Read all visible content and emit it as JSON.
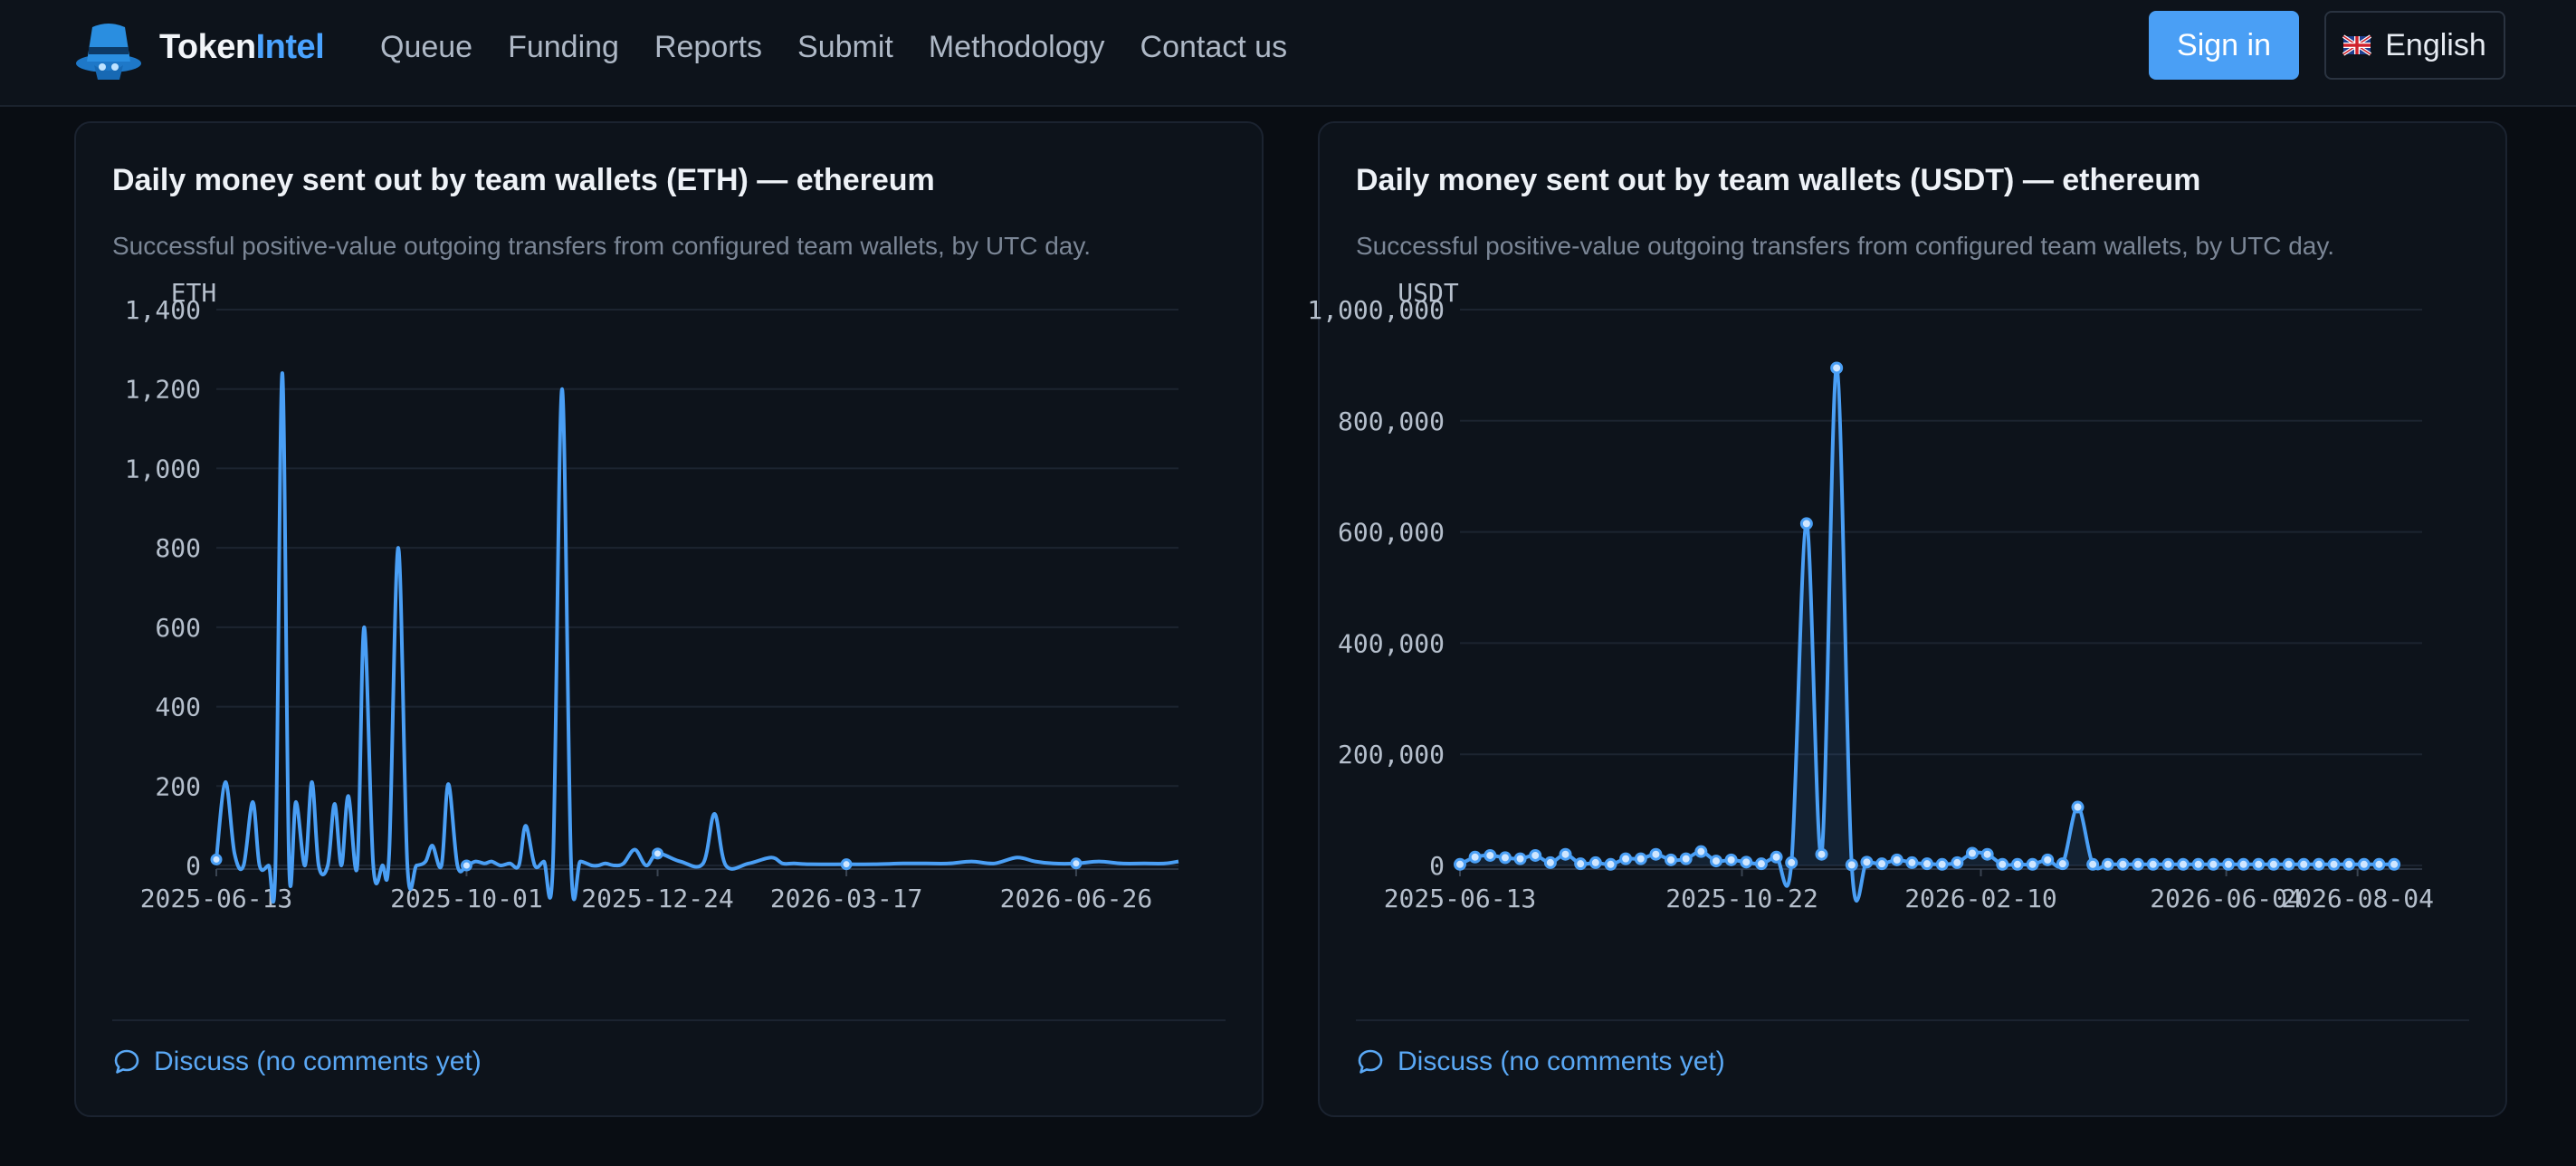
{
  "brand": {
    "name_part1": "Token",
    "name_part2": "Intel"
  },
  "nav": {
    "items": [
      {
        "label": "Queue"
      },
      {
        "label": "Funding"
      },
      {
        "label": "Reports"
      },
      {
        "label": "Submit"
      },
      {
        "label": "Methodology"
      },
      {
        "label": "Contact us"
      }
    ]
  },
  "auth": {
    "signin_label": "Sign in"
  },
  "language": {
    "label": "English"
  },
  "colors": {
    "accent": "#4a9ff5",
    "line": "#4a9ff5",
    "background": "#090d13",
    "card": "#0d131b"
  },
  "cards": [
    {
      "title": "Daily money sent out by team wallets (ETH) — ethereum",
      "subtitle": "Successful positive-value outgoing transfers from configured team wallets, by UTC day.",
      "discuss_label": "Discuss (no comments yet)"
    },
    {
      "title": "Daily money sent out by team wallets (USDT) — ethereum",
      "subtitle": "Successful positive-value outgoing transfers from configured team wallets, by UTC day.",
      "discuss_label": "Discuss (no comments yet)"
    }
  ],
  "chart_data": [
    {
      "type": "line",
      "ylabel": "ETH",
      "ylim": [
        0,
        1400
      ],
      "xlim": [
        "2025-06-13",
        "2026-08-10"
      ],
      "yticks": [
        "0",
        "200",
        "400",
        "600",
        "800",
        "1,000",
        "1,200",
        "1,400"
      ],
      "ytick_values": [
        0,
        200,
        400,
        600,
        800,
        1000,
        1200,
        1400
      ],
      "xticks": [
        "2025-06-13",
        "2025-10-01",
        "2025-12-24",
        "2026-03-17",
        "2026-06-26"
      ],
      "grid": true,
      "series": [
        {
          "x": [
            "2025-06-13",
            "2025-06-17",
            "2025-06-21",
            "2025-06-25",
            "2025-06-29",
            "2025-07-02",
            "2025-07-06",
            "2025-07-09",
            "2025-07-12",
            "2025-07-15",
            "2025-07-18",
            "2025-07-22",
            "2025-07-25",
            "2025-07-28",
            "2025-08-01",
            "2025-08-04",
            "2025-08-07",
            "2025-08-10",
            "2025-08-14",
            "2025-08-17",
            "2025-08-21",
            "2025-08-25",
            "2025-08-28",
            "2025-09-01",
            "2025-09-05",
            "2025-09-09",
            "2025-09-13",
            "2025-09-16",
            "2025-09-20",
            "2025-09-23",
            "2025-09-27",
            "2025-10-01",
            "2025-10-05",
            "2025-10-09",
            "2025-10-12",
            "2025-10-16",
            "2025-10-20",
            "2025-10-24",
            "2025-10-27",
            "2025-10-31",
            "2025-11-04",
            "2025-11-08",
            "2025-11-12",
            "2025-11-16",
            "2025-11-20",
            "2025-11-25",
            "2025-11-28",
            "2025-12-01",
            "2025-12-05",
            "2025-12-09",
            "2025-12-14",
            "2025-12-19",
            "2025-12-24",
            "2026-01-03",
            "2026-01-13",
            "2026-01-18",
            "2026-01-23",
            "2026-02-02",
            "2026-02-12",
            "2026-02-17",
            "2026-02-22",
            "2026-03-01",
            "2026-03-17",
            "2026-03-29",
            "2026-04-11",
            "2026-04-21",
            "2026-05-01",
            "2026-05-11",
            "2026-05-21",
            "2026-05-31",
            "2026-06-08",
            "2026-06-16",
            "2026-06-26",
            "2026-07-06",
            "2026-07-16",
            "2026-07-26",
            "2026-08-04",
            "2026-08-10"
          ],
          "y": [
            15,
            210,
            30,
            0,
            160,
            0,
            0,
            0,
            1240,
            0,
            160,
            0,
            210,
            0,
            0,
            155,
            0,
            175,
            0,
            600,
            0,
            0,
            30,
            800,
            0,
            0,
            10,
            50,
            0,
            205,
            0,
            0,
            10,
            5,
            10,
            0,
            5,
            0,
            100,
            0,
            10,
            5,
            1200,
            0,
            10,
            0,
            0,
            5,
            0,
            5,
            40,
            0,
            30,
            10,
            5,
            130,
            0,
            5,
            20,
            5,
            5,
            3,
            3,
            3,
            5,
            5,
            5,
            10,
            5,
            20,
            10,
            5,
            5,
            10,
            5,
            5,
            5,
            10
          ]
        }
      ]
    },
    {
      "type": "line",
      "ylabel": "USDT",
      "ylim": [
        0,
        1000000
      ],
      "xlim": [
        "2025-06-13",
        "2026-09-03"
      ],
      "yticks": [
        "0",
        "200,000",
        "400,000",
        "600,000",
        "800,000",
        "1,000,000"
      ],
      "ytick_values": [
        0,
        200000,
        400000,
        600000,
        800000,
        1000000
      ],
      "xticks": [
        "2025-06-13",
        "2025-10-22",
        "2026-02-10",
        "2026-06-04",
        "2026-08-04"
      ],
      "grid": true,
      "series": [
        {
          "x": [
            "2025-06-13",
            "2025-06-20",
            "2025-06-27",
            "2025-07-04",
            "2025-07-11",
            "2025-07-18",
            "2025-07-25",
            "2025-08-01",
            "2025-08-08",
            "2025-08-15",
            "2025-08-22",
            "2025-08-29",
            "2025-09-05",
            "2025-09-12",
            "2025-09-19",
            "2025-09-26",
            "2025-10-03",
            "2025-10-10",
            "2025-10-17",
            "2025-10-24",
            "2025-10-31",
            "2025-11-07",
            "2025-11-14",
            "2025-11-21",
            "2025-11-28",
            "2025-12-05",
            "2025-12-12",
            "2025-12-19",
            "2025-12-26",
            "2026-01-02",
            "2026-01-09",
            "2026-01-16",
            "2026-01-23",
            "2026-01-30",
            "2026-02-06",
            "2026-02-13",
            "2026-02-20",
            "2026-02-27",
            "2026-03-06",
            "2026-03-13",
            "2026-03-20",
            "2026-03-27",
            "2026-04-03",
            "2026-04-10",
            "2026-04-17",
            "2026-04-24",
            "2026-05-01",
            "2026-05-08",
            "2026-05-15",
            "2026-05-22",
            "2026-05-29",
            "2026-06-05",
            "2026-06-12",
            "2026-06-19",
            "2026-06-26",
            "2026-07-03",
            "2026-07-10",
            "2026-07-17",
            "2026-07-24",
            "2026-07-31",
            "2026-08-07",
            "2026-08-14",
            "2026-08-21"
          ],
          "y": [
            2000,
            15000,
            18000,
            14000,
            12000,
            18000,
            5000,
            20000,
            3000,
            5000,
            2000,
            12000,
            12000,
            20000,
            10000,
            12000,
            25000,
            8000,
            10000,
            6000,
            3000,
            15000,
            5000,
            615000,
            20000,
            895000,
            1000,
            6000,
            3000,
            10000,
            5000,
            3000,
            2000,
            5000,
            22000,
            20000,
            2000,
            2000,
            2000,
            10000,
            3000,
            105000,
            2000,
            2000,
            2000,
            2000,
            2000,
            2000,
            2000,
            2000,
            2000,
            2000,
            2000,
            2000,
            2000,
            2000,
            2000,
            2000,
            2000,
            2000,
            2000,
            2000,
            2000
          ]
        }
      ]
    }
  ]
}
